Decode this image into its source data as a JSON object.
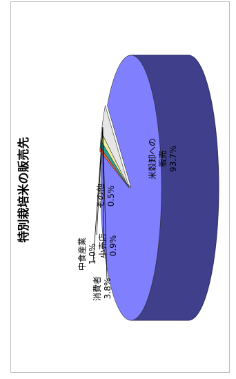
{
  "chart_data": {
    "type": "pie",
    "title": "特別栽培米の販売先",
    "three_d": true,
    "orientation": "rotated-90",
    "slices": [
      {
        "label": "米穀卸への販売",
        "lines": [
          "米穀卸への",
          "販売"
        ],
        "pct_label": "93.7%",
        "value": 93.7,
        "color": "#8080ff"
      },
      {
        "label": "その他",
        "lines": [
          "その他"
        ],
        "pct_label": "0.5%",
        "value": 0.5,
        "color": "#ff6040"
      },
      {
        "label": "小売店",
        "lines": [
          "小売店"
        ],
        "pct_label": "0.9%",
        "value": 0.9,
        "color": "#2aa39a"
      },
      {
        "label": "中食産業",
        "lines": [
          "中食産業"
        ],
        "pct_label": "1.0%",
        "value": 1.0,
        "color": "#f2f29a"
      },
      {
        "label": "消費者",
        "lines": [
          "消費者"
        ],
        "pct_label": "3.8%",
        "value": 3.8,
        "color": "#e6e6e6"
      }
    ],
    "side_colors": {
      "main": "#3f3f8c",
      "main_edge": "#2d2d6a"
    }
  }
}
